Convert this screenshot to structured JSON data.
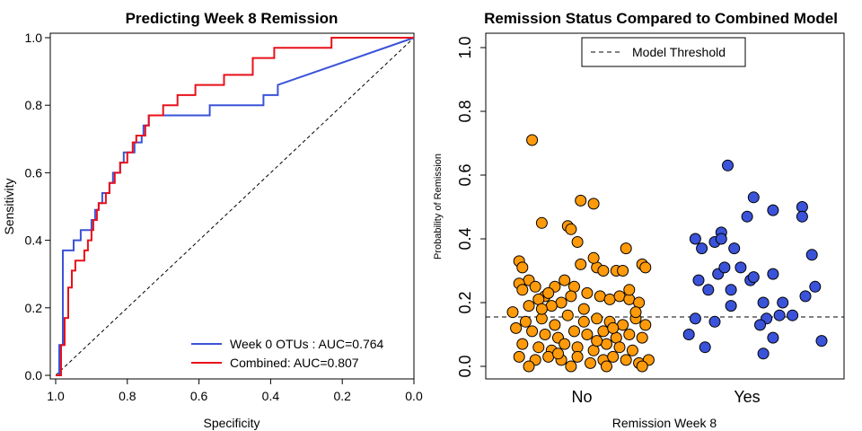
{
  "chart_data": [
    {
      "type": "line",
      "title": "Predicting Week 8 Remission",
      "xlabel": "Specificity",
      "ylabel": "Sensitivity",
      "xlim": [
        1.0,
        0.0
      ],
      "ylim": [
        0.0,
        1.0
      ],
      "x_reversed": true,
      "x_ticks": [
        "1.0",
        "0.8",
        "0.6",
        "0.4",
        "0.2",
        "0.0"
      ],
      "y_ticks": [
        "0.0",
        "0.2",
        "0.4",
        "0.6",
        "0.8",
        "1.0"
      ],
      "grid": false,
      "legend_position": "bottom-right",
      "reference_line": {
        "style": "dashed",
        "from": [
          1.0,
          0.0
        ],
        "to": [
          0.0,
          1.0
        ],
        "color": "#000000"
      },
      "series": [
        {
          "name": "Week 0 OTUs : AUC=0.764",
          "color": "#3a53d9",
          "points": [
            [
              1.0,
              0.0
            ],
            [
              0.99,
              0.0
            ],
            [
              0.99,
              0.09
            ],
            [
              0.98,
              0.09
            ],
            [
              0.98,
              0.37
            ],
            [
              0.95,
              0.37
            ],
            [
              0.95,
              0.4
            ],
            [
              0.93,
              0.4
            ],
            [
              0.93,
              0.43
            ],
            [
              0.9,
              0.43
            ],
            [
              0.9,
              0.46
            ],
            [
              0.89,
              0.46
            ],
            [
              0.89,
              0.49
            ],
            [
              0.88,
              0.49
            ],
            [
              0.88,
              0.51
            ],
            [
              0.87,
              0.51
            ],
            [
              0.87,
              0.54
            ],
            [
              0.85,
              0.54
            ],
            [
              0.85,
              0.57
            ],
            [
              0.84,
              0.57
            ],
            [
              0.84,
              0.6
            ],
            [
              0.82,
              0.6
            ],
            [
              0.82,
              0.63
            ],
            [
              0.81,
              0.63
            ],
            [
              0.81,
              0.66
            ],
            [
              0.78,
              0.66
            ],
            [
              0.78,
              0.69
            ],
            [
              0.76,
              0.69
            ],
            [
              0.76,
              0.71
            ],
            [
              0.755,
              0.71
            ],
            [
              0.755,
              0.74
            ],
            [
              0.74,
              0.74
            ],
            [
              0.74,
              0.77
            ],
            [
              0.57,
              0.77
            ],
            [
              0.57,
              0.8
            ],
            [
              0.42,
              0.8
            ],
            [
              0.42,
              0.83
            ],
            [
              0.38,
              0.83
            ],
            [
              0.38,
              0.86
            ],
            [
              0.0,
              1.0
            ]
          ]
        },
        {
          "name": "Combined: AUC=0.807",
          "color": "#e8111a",
          "points": [
            [
              1.0,
              0.0
            ],
            [
              0.985,
              0.0
            ],
            [
              0.985,
              0.09
            ],
            [
              0.975,
              0.09
            ],
            [
              0.975,
              0.17
            ],
            [
              0.965,
              0.17
            ],
            [
              0.965,
              0.26
            ],
            [
              0.955,
              0.26
            ],
            [
              0.955,
              0.31
            ],
            [
              0.945,
              0.31
            ],
            [
              0.945,
              0.34
            ],
            [
              0.92,
              0.34
            ],
            [
              0.92,
              0.37
            ],
            [
              0.91,
              0.37
            ],
            [
              0.91,
              0.4
            ],
            [
              0.9,
              0.4
            ],
            [
              0.9,
              0.43
            ],
            [
              0.895,
              0.43
            ],
            [
              0.895,
              0.46
            ],
            [
              0.885,
              0.46
            ],
            [
              0.885,
              0.49
            ],
            [
              0.88,
              0.49
            ],
            [
              0.88,
              0.51
            ],
            [
              0.86,
              0.51
            ],
            [
              0.86,
              0.54
            ],
            [
              0.85,
              0.54
            ],
            [
              0.85,
              0.57
            ],
            [
              0.835,
              0.57
            ],
            [
              0.835,
              0.6
            ],
            [
              0.82,
              0.6
            ],
            [
              0.82,
              0.63
            ],
            [
              0.8,
              0.63
            ],
            [
              0.8,
              0.66
            ],
            [
              0.785,
              0.66
            ],
            [
              0.785,
              0.69
            ],
            [
              0.775,
              0.69
            ],
            [
              0.775,
              0.71
            ],
            [
              0.75,
              0.71
            ],
            [
              0.75,
              0.74
            ],
            [
              0.74,
              0.74
            ],
            [
              0.74,
              0.77
            ],
            [
              0.7,
              0.77
            ],
            [
              0.7,
              0.8
            ],
            [
              0.66,
              0.8
            ],
            [
              0.66,
              0.83
            ],
            [
              0.61,
              0.83
            ],
            [
              0.61,
              0.86
            ],
            [
              0.53,
              0.86
            ],
            [
              0.53,
              0.89
            ],
            [
              0.45,
              0.89
            ],
            [
              0.45,
              0.94
            ],
            [
              0.39,
              0.94
            ],
            [
              0.39,
              0.97
            ],
            [
              0.23,
              0.97
            ],
            [
              0.23,
              1.0
            ],
            [
              0.0,
              1.0
            ]
          ]
        }
      ]
    },
    {
      "type": "scatter",
      "title": "Remission Status Compared to Combined Model",
      "xlabel": "Remission Week 8",
      "ylabel": "Probability of Remission",
      "categories": [
        "No",
        "Yes"
      ],
      "ylim": [
        0.0,
        1.0
      ],
      "y_ticks": [
        "0.0",
        "0.2",
        "0.4",
        "0.6",
        "0.8",
        "1.0"
      ],
      "grid": false,
      "legend_position": "top-center",
      "threshold": {
        "name": "Model Threshold",
        "value": 0.155,
        "style": "dashed",
        "color": "#000000"
      },
      "series": [
        {
          "name": "No",
          "color": "#ff9a0a",
          "points": [
            [
              0.0,
              0.17
            ],
            [
              0.06,
              0.71
            ],
            [
              0.09,
              0.45
            ],
            [
              0.17,
              0.44
            ],
            [
              0.21,
              0.52
            ],
            [
              0.25,
              0.51
            ],
            [
              0.18,
              0.43
            ],
            [
              0.2,
              0.39
            ],
            [
              0.21,
              0.32
            ],
            [
              0.26,
              0.31
            ],
            [
              0.28,
              0.3
            ],
            [
              0.32,
              0.3
            ],
            [
              0.35,
              0.37
            ],
            [
              0.4,
              0.32
            ],
            [
              0.02,
              0.33
            ],
            [
              0.03,
              0.31
            ],
            [
              0.05,
              0.27
            ],
            [
              0.07,
              0.25
            ],
            [
              0.13,
              0.25
            ],
            [
              0.16,
              0.27
            ],
            [
              0.19,
              0.25
            ],
            [
              0.02,
              0.26
            ],
            [
              0.34,
              0.3
            ],
            [
              0.41,
              0.31
            ],
            [
              0.25,
              0.34
            ],
            [
              0.03,
              0.24
            ],
            [
              0.1,
              0.22
            ],
            [
              0.15,
              0.2
            ],
            [
              0.23,
              0.23
            ],
            [
              0.27,
              0.22
            ],
            [
              0.3,
              0.21
            ],
            [
              0.33,
              0.22
            ],
            [
              0.36,
              0.21
            ],
            [
              0.39,
              0.2
            ],
            [
              0.08,
              0.21
            ],
            [
              0.12,
              0.19
            ],
            [
              0.18,
              0.22
            ],
            [
              0.11,
              0.23
            ],
            [
              0.36,
              0.24
            ],
            [
              0.04,
              0.14
            ],
            [
              0.09,
              0.15
            ],
            [
              0.13,
              0.13
            ],
            [
              0.17,
              0.16
            ],
            [
              0.22,
              0.14
            ],
            [
              0.26,
              0.15
            ],
            [
              0.3,
              0.14
            ],
            [
              0.34,
              0.13
            ],
            [
              0.38,
              0.15
            ],
            [
              0.41,
              0.13
            ],
            [
              0.01,
              0.12
            ],
            [
              0.06,
              0.11
            ],
            [
              0.1,
              0.1
            ],
            [
              0.14,
              0.09
            ],
            [
              0.19,
              0.11
            ],
            [
              0.23,
              0.1
            ],
            [
              0.28,
              0.11
            ],
            [
              0.32,
              0.09
            ],
            [
              0.36,
              0.1
            ],
            [
              0.4,
              0.09
            ],
            [
              0.03,
              0.07
            ],
            [
              0.08,
              0.06
            ],
            [
              0.12,
              0.05
            ],
            [
              0.16,
              0.07
            ],
            [
              0.2,
              0.06
            ],
            [
              0.25,
              0.05
            ],
            [
              0.29,
              0.07
            ],
            [
              0.33,
              0.06
            ],
            [
              0.37,
              0.05
            ],
            [
              0.02,
              0.03
            ],
            [
              0.07,
              0.02
            ],
            [
              0.11,
              0.03
            ],
            [
              0.15,
              0.02
            ],
            [
              0.2,
              0.03
            ],
            [
              0.24,
              0.01
            ],
            [
              0.28,
              0.02
            ],
            [
              0.31,
              0.03
            ],
            [
              0.35,
              0.02
            ],
            [
              0.39,
              0.01
            ],
            [
              0.42,
              0.02
            ],
            [
              0.05,
              0.0
            ],
            [
              0.18,
              0.0
            ],
            [
              0.29,
              0.0
            ],
            [
              0.4,
              0.0
            ],
            [
              0.14,
              0.04
            ],
            [
              0.26,
              0.08
            ],
            [
              0.31,
              0.12
            ],
            [
              0.09,
              0.18
            ],
            [
              0.05,
              0.19
            ],
            [
              0.38,
              0.17
            ],
            [
              0.22,
              0.18
            ]
          ]
        },
        {
          "name": "Yes",
          "color": "#3a53d9",
          "points": [
            [
              0.02,
              0.1
            ],
            [
              0.04,
              0.4
            ],
            [
              0.06,
              0.37
            ],
            [
              0.1,
              0.39
            ],
            [
              0.12,
              0.42
            ],
            [
              0.14,
              0.63
            ],
            [
              0.16,
              0.37
            ],
            [
              0.2,
              0.47
            ],
            [
              0.22,
              0.53
            ],
            [
              0.28,
              0.49
            ],
            [
              0.37,
              0.5
            ],
            [
              0.37,
              0.47
            ],
            [
              0.4,
              0.35
            ],
            [
              0.05,
              0.27
            ],
            [
              0.08,
              0.24
            ],
            [
              0.11,
              0.29
            ],
            [
              0.13,
              0.31
            ],
            [
              0.15,
              0.24
            ],
            [
              0.18,
              0.31
            ],
            [
              0.21,
              0.27
            ],
            [
              0.22,
              0.28
            ],
            [
              0.28,
              0.29
            ],
            [
              0.31,
              0.2
            ],
            [
              0.25,
              0.2
            ],
            [
              0.15,
              0.19
            ],
            [
              0.04,
              0.15
            ],
            [
              0.1,
              0.14
            ],
            [
              0.26,
              0.15
            ],
            [
              0.3,
              0.16
            ],
            [
              0.34,
              0.16
            ],
            [
              0.38,
              0.22
            ],
            [
              0.41,
              0.25
            ],
            [
              0.24,
              0.13
            ],
            [
              0.07,
              0.06
            ],
            [
              0.25,
              0.04
            ],
            [
              0.28,
              0.09
            ],
            [
              0.43,
              0.08
            ],
            [
              0.12,
              0.4
            ]
          ]
        }
      ]
    }
  ]
}
